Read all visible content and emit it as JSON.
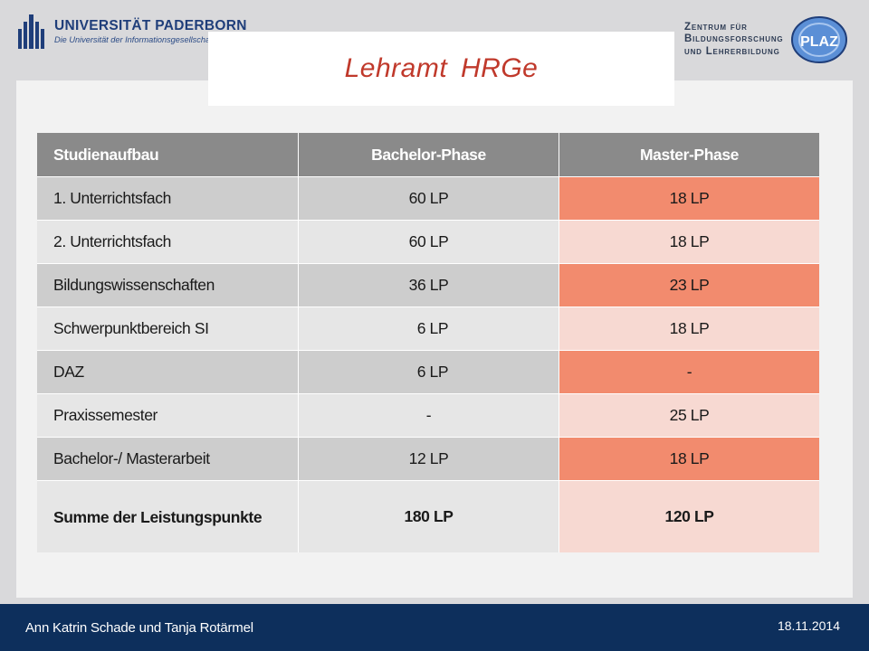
{
  "header": {
    "university": {
      "name": "UNIVERSITÄT PADERBORN",
      "subtitle": "Die Universität der Informationsgesellschaft",
      "logo_icon": "upb-logo-icon"
    },
    "plaz": {
      "lines": [
        "Zentrum für",
        "Bildungsforschung",
        "und Lehrerbildung"
      ],
      "logo_text": "PLAZ",
      "logo_icon": "plaz-logo-icon"
    }
  },
  "title": "Lehramt  HRGe",
  "table": {
    "columns": [
      "Studienaufbau",
      "Bachelor-Phase",
      "Master-Phase"
    ],
    "rows": [
      {
        "label": "1. Unterrichtsfach",
        "bachelor": "60 LP",
        "master": "18 LP"
      },
      {
        "label": "2. Unterrichtsfach",
        "bachelor": "60 LP",
        "master": "18 LP"
      },
      {
        "label": "Bildungswissenschaften",
        "bachelor": "36 LP",
        "master": "23 LP"
      },
      {
        "label": "Schwerpunktbereich SI",
        "bachelor": "  6 LP",
        "master": "18 LP"
      },
      {
        "label": "DAZ",
        "bachelor": "  6 LP",
        "master": "-"
      },
      {
        "label": "Praxissemester",
        "bachelor": "-",
        "master": "25 LP"
      },
      {
        "label": "Bachelor-/ Masterarbeit",
        "bachelor": "12 LP",
        "master": "18 LP"
      }
    ],
    "summary": {
      "label": "Summe der Leistungspunkte",
      "bachelor": "180 LP",
      "master": "120 LP"
    }
  },
  "footer": {
    "author": "Ann Katrin Schade und Tanja Rotärmel",
    "date": "18.11.2014"
  },
  "colors": {
    "title": "#c0392b",
    "header_row": "#8a8a8a",
    "master_dark": "#f28b6e",
    "master_light": "#f7d9d2",
    "footer": "#0d2f5c"
  }
}
